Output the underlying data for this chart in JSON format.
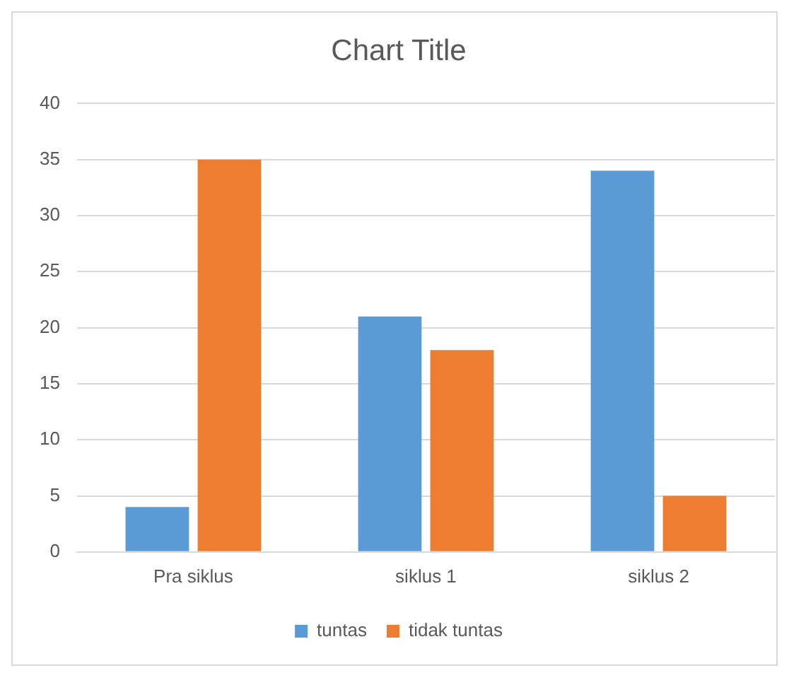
{
  "chart_data": {
    "type": "bar",
    "title": "Chart Title",
    "categories": [
      "Pra siklus",
      "siklus 1",
      "siklus 2"
    ],
    "series": [
      {
        "name": "tuntas",
        "color": "#5b9bd5",
        "values": [
          4,
          21,
          34
        ]
      },
      {
        "name": "tidak tuntas",
        "color": "#ed7d31",
        "values": [
          35,
          18,
          5
        ]
      }
    ],
    "ylim": [
      0,
      40
    ],
    "yticks": [
      0,
      5,
      10,
      15,
      20,
      25,
      30,
      35,
      40
    ],
    "grid": "y",
    "legend": "bottom"
  }
}
